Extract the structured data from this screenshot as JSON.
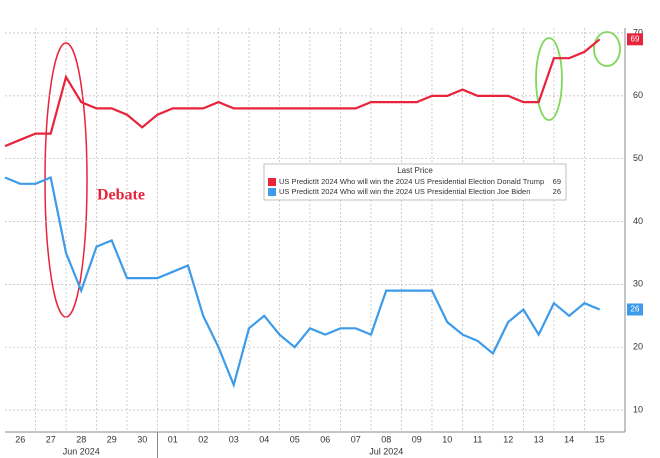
{
  "chart_data": {
    "type": "line",
    "annotations": [
      "Debate"
    ],
    "legend_title": "Last Price",
    "x": [
      0,
      0.5,
      1,
      1.5,
      2,
      2.5,
      3,
      3.5,
      4,
      4.5,
      5,
      5.5,
      6,
      6.5,
      7,
      7.5,
      8,
      8.5,
      9,
      9.5,
      10,
      10.5,
      11,
      11.5,
      12,
      12.5,
      13,
      13.5,
      14,
      14.5,
      15,
      15.5,
      16,
      16.5,
      17,
      17.5,
      18,
      18.5,
      19,
      19.5
    ],
    "series": [
      {
        "name": "US PredictIt 2024 Who will win the 2024 US Presidential Election Donald Trump",
        "color": "#e8233c",
        "values": [
          52,
          53,
          54,
          54,
          63,
          59,
          58,
          58,
          57,
          55,
          57,
          58,
          58,
          58,
          59,
          58,
          58,
          58,
          58,
          58,
          58,
          58,
          58,
          58,
          59,
          59,
          59,
          59,
          60,
          60,
          61,
          60,
          60,
          60,
          59,
          59,
          66,
          66,
          67,
          69
        ]
      },
      {
        "name": "US PredictIt 2024 Who will win the 2024 US Presidential Election Joe Biden",
        "color": "#3d9be9",
        "values": [
          47,
          46,
          46,
          47,
          35,
          29,
          36,
          37,
          31,
          31,
          31,
          32,
          33,
          25,
          20,
          14,
          23,
          25,
          22,
          20,
          23,
          22,
          23,
          23,
          22,
          29,
          29,
          29,
          29,
          24,
          22,
          21,
          19,
          24,
          26,
          22,
          27,
          25,
          27,
          26
        ]
      }
    ],
    "xlim": [
      0,
      20.33
    ],
    "xticks": [
      {
        "value": 0,
        "label": "26"
      },
      {
        "value": 1,
        "label": "27"
      },
      {
        "value": 2,
        "label": "28"
      },
      {
        "value": 3,
        "label": "29"
      },
      {
        "value": 4,
        "label": "30"
      },
      {
        "value": 5,
        "label": "01"
      },
      {
        "value": 6,
        "label": "02"
      },
      {
        "value": 7,
        "label": "03"
      },
      {
        "value": 8,
        "label": "04"
      },
      {
        "value": 9,
        "label": "05"
      },
      {
        "value": 10,
        "label": "06"
      },
      {
        "value": 11,
        "label": "07"
      },
      {
        "value": 12,
        "label": "08"
      },
      {
        "value": 13,
        "label": "09"
      },
      {
        "value": 14,
        "label": "10"
      },
      {
        "value": 15,
        "label": "11"
      },
      {
        "value": 16,
        "label": "12"
      },
      {
        "value": 17,
        "label": "13"
      },
      {
        "value": 18,
        "label": "14"
      },
      {
        "value": 19,
        "label": "15"
      }
    ],
    "x_sublabels": [
      {
        "value": 2,
        "label": "Jun 2024"
      },
      {
        "value": 12,
        "label": "Jul 2024"
      }
    ],
    "ylim": [
      6.5,
      70.8
    ],
    "yticks": [
      10,
      20,
      30,
      40,
      50,
      60,
      70
    ],
    "grid": true
  }
}
